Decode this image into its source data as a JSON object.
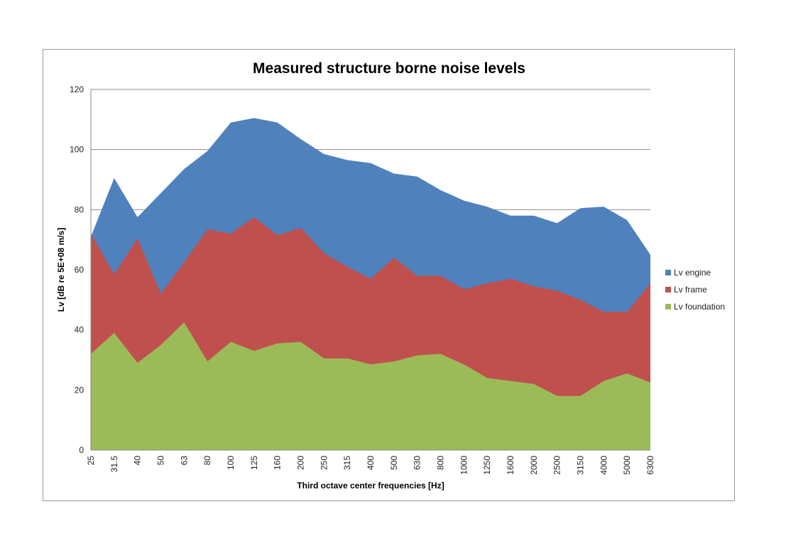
{
  "chart_data": {
    "type": "area",
    "stacked": false,
    "title": "Measured structure borne noise levels",
    "xlabel": "Third octave center frequencies [Hz]",
    "ylabel": "Lv [dB re 5E+08 m/s]",
    "ylim": [
      0,
      120
    ],
    "yticks": [
      0,
      20,
      40,
      60,
      80,
      100,
      120
    ],
    "grid": "horizontal",
    "legend_position": "right",
    "categories": [
      "25",
      "31.5",
      "40",
      "50",
      "63",
      "80",
      "100",
      "125",
      "160",
      "200",
      "250",
      "315",
      "400",
      "500",
      "630",
      "800",
      "1000",
      "1250",
      "1600",
      "2000",
      "2500",
      "3150",
      "4000",
      "5000",
      "6300"
    ],
    "series": [
      {
        "name": "Lv engine",
        "color": "#4f81bd",
        "values": [
          71,
          90.5,
          77.5,
          85.5,
          93.5,
          99.5,
          109,
          110.5,
          109,
          103.5,
          98.5,
          96.5,
          95.5,
          92,
          91,
          86.5,
          83,
          81,
          78,
          78,
          75.5,
          80.5,
          81,
          76.5,
          65
        ]
      },
      {
        "name": "Lv frame",
        "color": "#c0504d",
        "values": [
          72,
          58.5,
          70.5,
          52,
          62.5,
          73.5,
          72,
          77.5,
          71.5,
          74,
          65.5,
          61,
          57,
          64,
          58,
          58,
          53.5,
          55.5,
          57,
          54.5,
          53,
          50,
          46,
          46,
          55.5
        ]
      },
      {
        "name": "Lv foundation",
        "color": "#9bbb59",
        "values": [
          32,
          39,
          29,
          35,
          42.5,
          29.5,
          36,
          33,
          35.5,
          36,
          30.5,
          30.5,
          28.5,
          29.5,
          31.5,
          32,
          28.5,
          24,
          23,
          22,
          18,
          18,
          23,
          25.5,
          22.5
        ]
      }
    ]
  }
}
